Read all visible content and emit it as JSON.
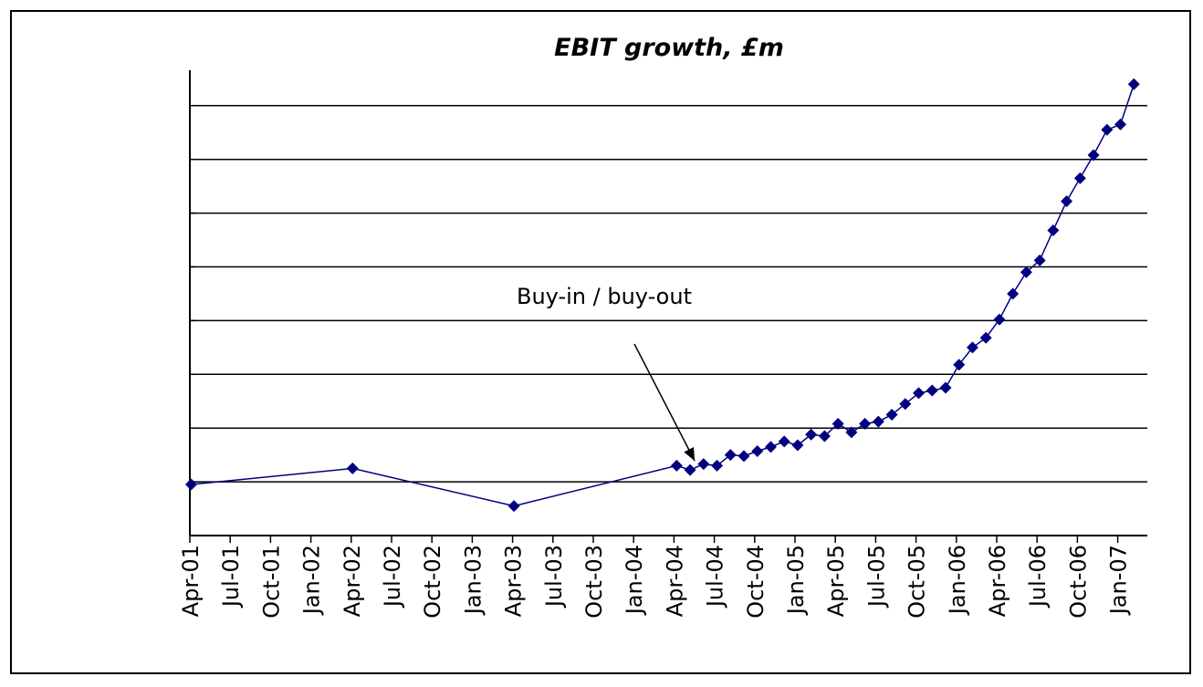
{
  "chart_data": {
    "type": "line",
    "title": "EBIT growth, £m",
    "xlabel": "",
    "ylabel": "",
    "x_tick_labels": [
      "Apr-01",
      "Jul-01",
      "Oct-01",
      "Jan-02",
      "Apr-02",
      "Jul-02",
      "Oct-02",
      "Jan-03",
      "Apr-03",
      "Jul-03",
      "Oct-03",
      "Jan-04",
      "Apr-04",
      "Jul-04",
      "Oct-04",
      "Jan-05",
      "Apr-05",
      "Jul-05",
      "Oct-05",
      "Jan-06",
      "Apr-06",
      "Jul-06",
      "Oct-06",
      "Jan-07"
    ],
    "x_unit": "months from Apr-01",
    "y_tick_labels_shown": false,
    "y_gridlines": 8,
    "grid": true,
    "legend": "none",
    "series": [
      {
        "color": "#000080",
        "marker": "diamond",
        "points": [
          {
            "x": 0.1,
            "y": 0.95
          },
          {
            "x": 12.1,
            "y": 1.25
          },
          {
            "x": 24.1,
            "y": 0.55
          },
          {
            "x": 36.2,
            "y": 1.3
          },
          {
            "x": 37.2,
            "y": 1.22
          },
          {
            "x": 38.2,
            "y": 1.33
          },
          {
            "x": 39.2,
            "y": 1.3
          },
          {
            "x": 40.2,
            "y": 1.5
          },
          {
            "x": 41.2,
            "y": 1.48
          },
          {
            "x": 42.2,
            "y": 1.57
          },
          {
            "x": 43.2,
            "y": 1.65
          },
          {
            "x": 44.2,
            "y": 1.75
          },
          {
            "x": 45.2,
            "y": 1.68
          },
          {
            "x": 46.2,
            "y": 1.88
          },
          {
            "x": 47.2,
            "y": 1.85
          },
          {
            "x": 48.2,
            "y": 2.08
          },
          {
            "x": 49.2,
            "y": 1.92
          },
          {
            "x": 50.2,
            "y": 2.08
          },
          {
            "x": 51.2,
            "y": 2.12
          },
          {
            "x": 52.2,
            "y": 2.25
          },
          {
            "x": 53.2,
            "y": 2.45
          },
          {
            "x": 54.2,
            "y": 2.65
          },
          {
            "x": 55.2,
            "y": 2.7
          },
          {
            "x": 56.2,
            "y": 2.75
          },
          {
            "x": 57.2,
            "y": 3.18
          },
          {
            "x": 58.2,
            "y": 3.5
          },
          {
            "x": 59.2,
            "y": 3.68
          },
          {
            "x": 60.2,
            "y": 4.02
          },
          {
            "x": 61.2,
            "y": 4.5
          },
          {
            "x": 62.2,
            "y": 4.9
          },
          {
            "x": 63.2,
            "y": 5.12
          },
          {
            "x": 64.2,
            "y": 5.68
          },
          {
            "x": 65.2,
            "y": 6.22
          },
          {
            "x": 66.2,
            "y": 6.65
          },
          {
            "x": 67.2,
            "y": 7.08
          },
          {
            "x": 68.2,
            "y": 7.55
          },
          {
            "x": 69.2,
            "y": 7.65
          },
          {
            "x": 70.2,
            "y": 8.4
          }
        ]
      }
    ],
    "annotations": [
      {
        "text": "Buy-in / buy-out",
        "arrow_to": {
          "x": 37.2,
          "y": 1.22
        }
      }
    ]
  }
}
